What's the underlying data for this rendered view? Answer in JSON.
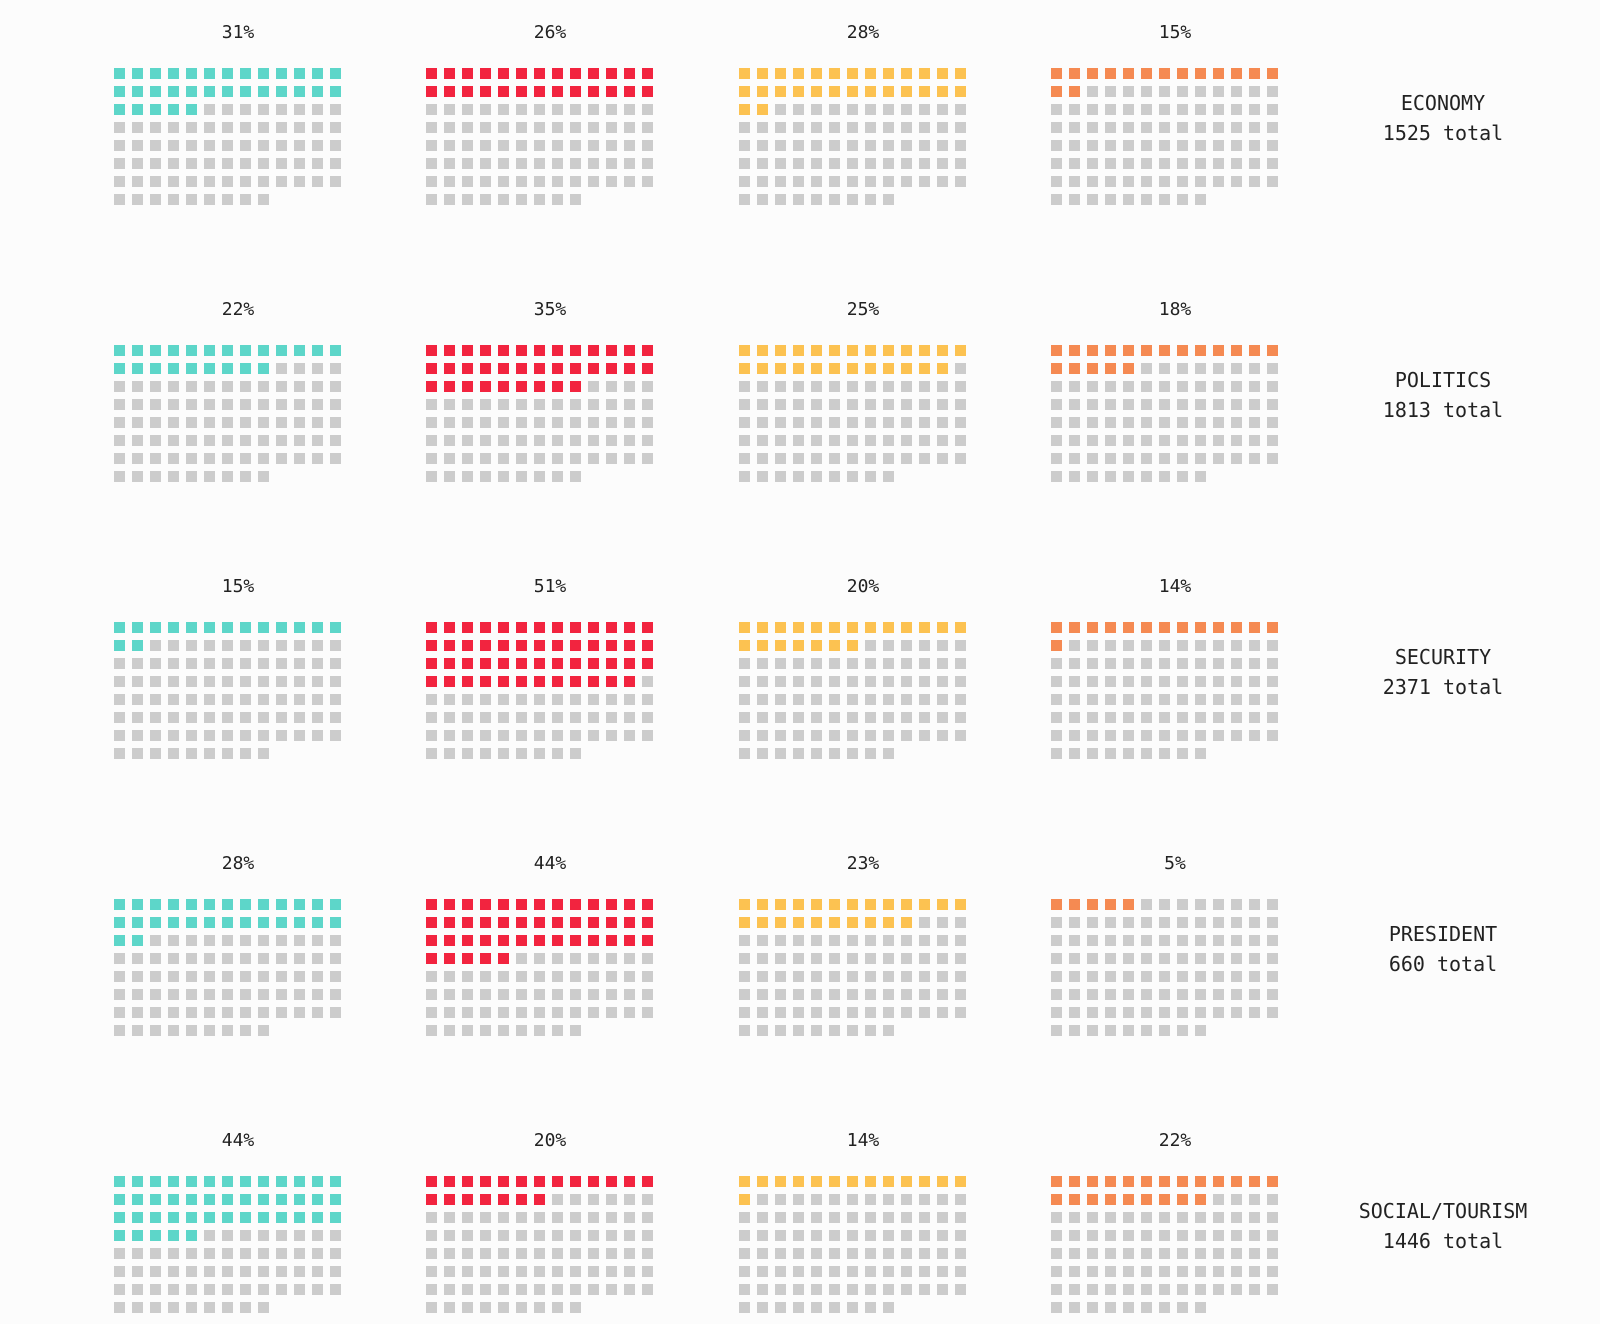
{
  "colors": {
    "empty": "#cccccc",
    "series": [
      "#5dd6c9",
      "#f2243f",
      "#fcc251",
      "#f58a52"
    ]
  },
  "chart_data": {
    "type": "waffle",
    "cells_per_grid": 100,
    "columns": 13,
    "rows": [
      {
        "label": "ECONOMY",
        "total_label": "1525 total",
        "total": 1525,
        "values": [
          31,
          26,
          28,
          15
        ]
      },
      {
        "label": "POLITICS",
        "total_label": "1813 total",
        "total": 1813,
        "values": [
          22,
          35,
          25,
          18
        ]
      },
      {
        "label": "SECURITY",
        "total_label": "2371 total",
        "total": 2371,
        "values": [
          15,
          51,
          20,
          14
        ]
      },
      {
        "label": "PRESIDENT",
        "total_label": "660 total",
        "total": 660,
        "values": [
          28,
          44,
          23,
          5
        ]
      },
      {
        "label": "SOCIAL/TOURISM",
        "total_label": "1446 total",
        "total": 1446,
        "values": [
          44,
          20,
          14,
          22
        ]
      }
    ],
    "value_labels": [
      [
        "31%",
        "26%",
        "28%",
        "15%"
      ],
      [
        "22%",
        "35%",
        "25%",
        "18%"
      ],
      [
        "15%",
        "51%",
        "20%",
        "14%"
      ],
      [
        "28%",
        "44%",
        "23%",
        "5%"
      ],
      [
        "44%",
        "20%",
        "14%",
        "22%"
      ]
    ]
  }
}
